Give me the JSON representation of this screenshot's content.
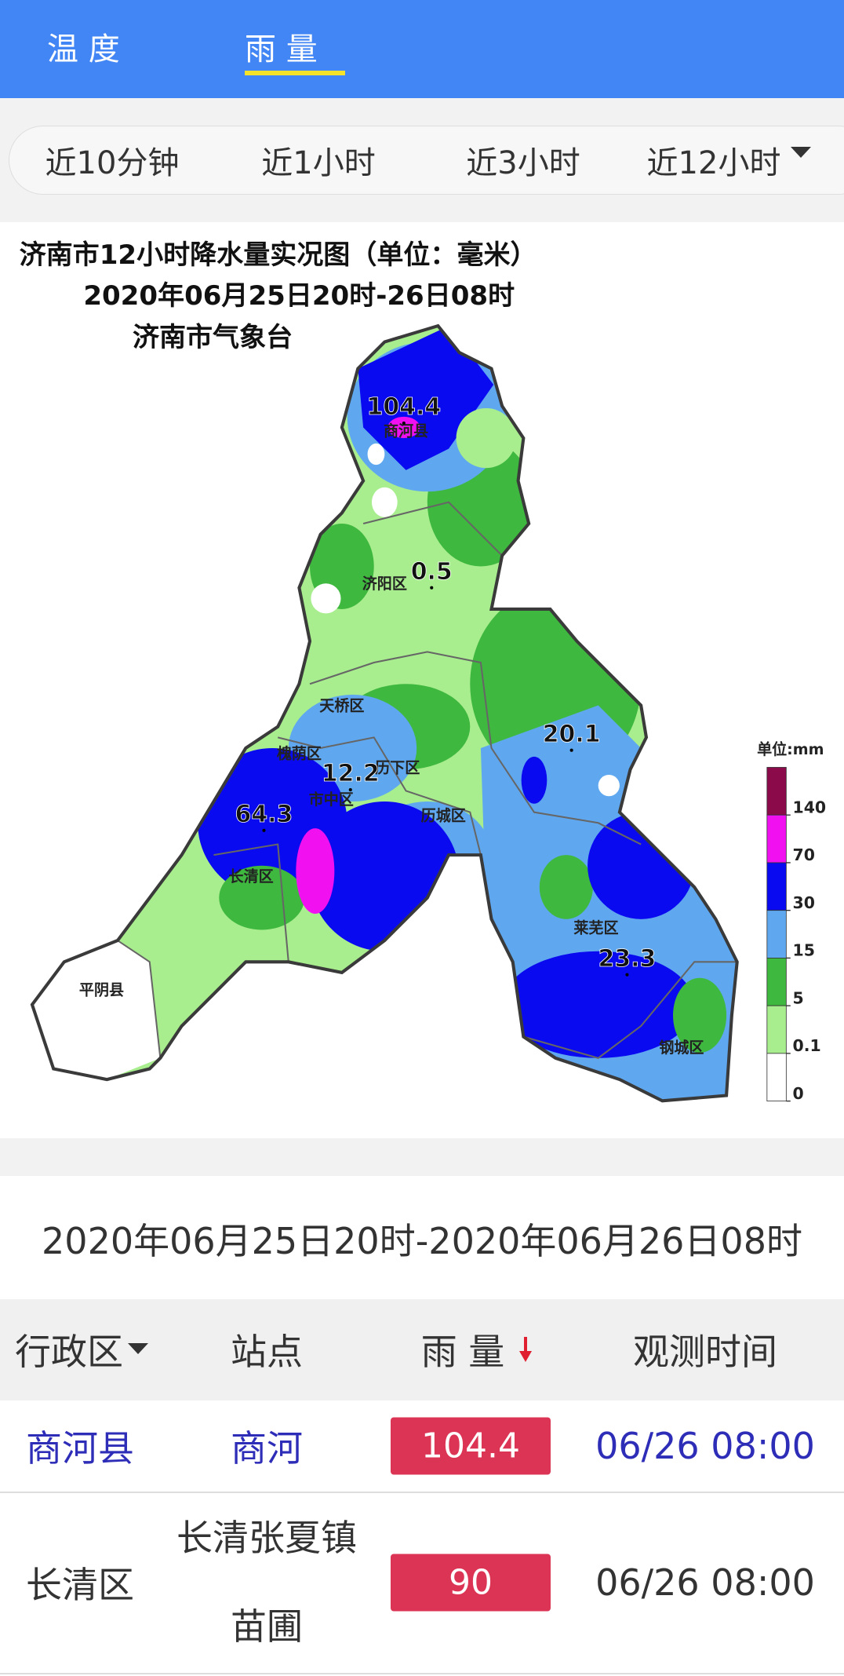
{
  "tabs": [
    "温 度",
    "雨 量"
  ],
  "periods": [
    "近10分钟",
    "近1小时",
    "近3小时",
    "近12小时"
  ],
  "map": {
    "title": [
      "济南市12小时降水量实况图（单位：毫米）",
      "2020年06月25日20时-26日08时",
      "济南市气象台"
    ],
    "districts": [
      "商河县",
      "济阳区",
      "天桥区",
      "槐荫区",
      "历下区",
      "市中区",
      "历城区",
      "长清区",
      "平阴县",
      "莱芜区",
      "钢城区"
    ],
    "values": [
      104.4,
      0.5,
      20.1,
      12.2,
      64.3,
      23.3
    ],
    "legend": {
      "unit": "单位:mm",
      "levels": [
        140,
        70,
        30,
        15,
        5,
        0.1,
        0
      ]
    }
  },
  "period_label": "2020年06月25日20时-2020年06月26日08时",
  "table": {
    "header": [
      "行政区",
      "站点",
      "雨 量",
      "观测时间"
    ],
    "rows": [
      [
        "商河县",
        "商河",
        104.4,
        "06/26 08:00"
      ],
      [
        "长清区",
        "长清张夏镇苗圃",
        90,
        "06/26 08:00"
      ]
    ]
  }
}
